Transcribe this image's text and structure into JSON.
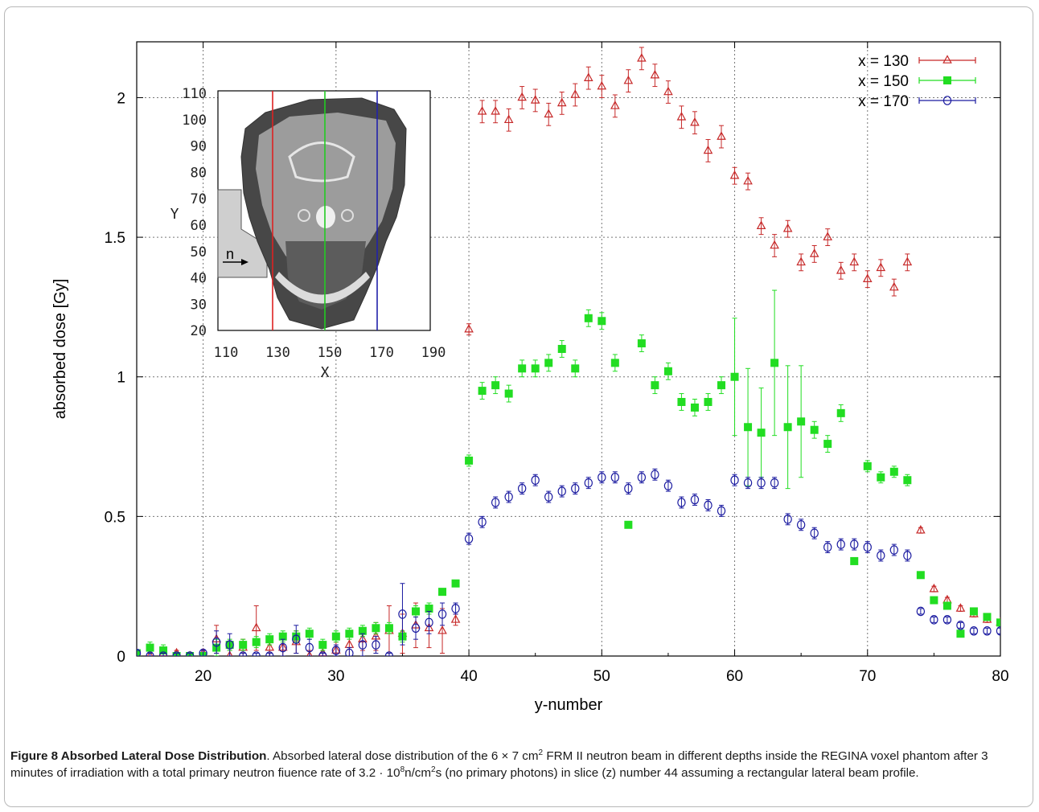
{
  "chart_data": {
    "type": "scatter",
    "xlabel": "y-number",
    "ylabel": "absorbed dose [Gy]",
    "xlim": [
      15,
      80
    ],
    "ylim": [
      0,
      2.2
    ],
    "xticks": [
      20,
      30,
      40,
      50,
      60,
      70,
      80
    ],
    "yticks": [
      0,
      0.5,
      1,
      1.5,
      2
    ],
    "grid": true,
    "legend_position": "top-right",
    "series": [
      {
        "name": "x = 130",
        "color": "#c62828",
        "marker": "triangle-open",
        "x": [
          15,
          16,
          17,
          18,
          19,
          20,
          21,
          22,
          23,
          24,
          25,
          26,
          27,
          28,
          29,
          30,
          31,
          32,
          33,
          34,
          35,
          36,
          37,
          38,
          39,
          40,
          41,
          42,
          43,
          44,
          45,
          46,
          47,
          48,
          49,
          50,
          51,
          52,
          53,
          54,
          55,
          56,
          57,
          58,
          59,
          60,
          61,
          62,
          63,
          64,
          65,
          66,
          67,
          68,
          69,
          70,
          71,
          72,
          73,
          74,
          75,
          76,
          77,
          78,
          79,
          80
        ],
        "y": [
          0.01,
          0.0,
          0.01,
          0.01,
          0.0,
          0.01,
          0.06,
          0.0,
          0.03,
          0.1,
          0.03,
          0.03,
          0.05,
          0.0,
          0.01,
          0.02,
          0.04,
          0.06,
          0.07,
          0.09,
          0.08,
          0.11,
          0.1,
          0.09,
          0.13,
          1.17,
          1.95,
          1.95,
          1.92,
          2.0,
          1.99,
          1.94,
          1.98,
          2.01,
          2.07,
          2.04,
          1.97,
          2.06,
          2.14,
          2.08,
          2.02,
          1.93,
          1.91,
          1.81,
          1.86,
          1.72,
          1.7,
          1.54,
          1.47,
          1.53,
          1.41,
          1.44,
          1.5,
          1.38,
          1.41,
          1.35,
          1.39,
          1.32,
          1.41,
          0.45,
          0.24,
          0.2,
          0.17,
          0.15,
          0.13,
          0.12
        ],
        "err": [
          0.01,
          0.01,
          0.01,
          0.01,
          0.01,
          0.01,
          0.05,
          0.02,
          0.03,
          0.08,
          0.03,
          0.03,
          0.04,
          0.02,
          0.02,
          0.03,
          0.04,
          0.04,
          0.05,
          0.09,
          0.07,
          0.08,
          0.07,
          0.08,
          0.02,
          0.02,
          0.04,
          0.04,
          0.04,
          0.04,
          0.04,
          0.04,
          0.04,
          0.04,
          0.04,
          0.04,
          0.04,
          0.04,
          0.04,
          0.04,
          0.04,
          0.04,
          0.04,
          0.04,
          0.04,
          0.03,
          0.03,
          0.03,
          0.04,
          0.03,
          0.03,
          0.03,
          0.03,
          0.03,
          0.03,
          0.03,
          0.03,
          0.03,
          0.03,
          0.01,
          0.01,
          0.01,
          0.01,
          0.01,
          0.01,
          0.01
        ]
      },
      {
        "name": "x = 150",
        "color": "#22dd22",
        "marker": "square-filled",
        "x": [
          15,
          16,
          17,
          18,
          19,
          20,
          21,
          22,
          23,
          24,
          25,
          26,
          27,
          28,
          29,
          30,
          31,
          32,
          33,
          34,
          35,
          36,
          37,
          38,
          39,
          40,
          41,
          42,
          43,
          44,
          45,
          46,
          47,
          48,
          49,
          50,
          51,
          52,
          53,
          54,
          55,
          56,
          57,
          58,
          59,
          60,
          61,
          62,
          63,
          64,
          65,
          66,
          67,
          68,
          69,
          70,
          71,
          72,
          73,
          74,
          75,
          76,
          77,
          78,
          79,
          80
        ],
        "y": [
          0.01,
          0.03,
          0.02,
          0.0,
          0.0,
          0.0,
          0.03,
          0.04,
          0.04,
          0.05,
          0.06,
          0.07,
          0.07,
          0.08,
          0.04,
          0.07,
          0.08,
          0.09,
          0.1,
          0.1,
          0.07,
          0.16,
          0.17,
          0.23,
          0.26,
          0.7,
          0.95,
          0.97,
          0.94,
          1.03,
          1.03,
          1.05,
          1.1,
          1.03,
          1.21,
          1.2,
          1.05,
          0.47,
          1.12,
          0.97,
          1.02,
          0.91,
          0.89,
          0.91,
          0.97,
          1.0,
          0.82,
          0.8,
          1.05,
          0.82,
          0.84,
          0.81,
          0.76,
          0.87,
          0.34,
          0.68,
          0.64,
          0.66,
          0.63,
          0.29,
          0.2,
          0.18,
          0.08,
          0.16,
          0.14,
          0.12
        ],
        "err": [
          0.01,
          0.02,
          0.02,
          0.01,
          0.01,
          0.01,
          0.03,
          0.02,
          0.02,
          0.02,
          0.02,
          0.02,
          0.02,
          0.02,
          0.02,
          0.02,
          0.02,
          0.02,
          0.02,
          0.02,
          0.02,
          0.02,
          0.02,
          0.01,
          0.01,
          0.02,
          0.03,
          0.03,
          0.03,
          0.03,
          0.03,
          0.03,
          0.03,
          0.03,
          0.03,
          0.03,
          0.03,
          0.01,
          0.03,
          0.03,
          0.03,
          0.03,
          0.03,
          0.03,
          0.03,
          0.21,
          0.21,
          0.16,
          0.26,
          0.22,
          0.2,
          0.03,
          0.03,
          0.03,
          0.01,
          0.02,
          0.02,
          0.02,
          0.02,
          0.01,
          0.01,
          0.01,
          0.01,
          0.01,
          0.01,
          0.01
        ]
      },
      {
        "name": "x = 170",
        "color": "#1a1aa0",
        "marker": "circle-open",
        "x": [
          15,
          16,
          17,
          18,
          19,
          20,
          21,
          22,
          23,
          24,
          25,
          26,
          27,
          28,
          29,
          30,
          31,
          32,
          33,
          34,
          35,
          36,
          37,
          38,
          39,
          40,
          41,
          42,
          43,
          44,
          45,
          46,
          47,
          48,
          49,
          50,
          51,
          52,
          53,
          54,
          55,
          56,
          57,
          58,
          59,
          60,
          61,
          62,
          63,
          64,
          65,
          66,
          67,
          68,
          69,
          70,
          71,
          72,
          73,
          74,
          75,
          76,
          77,
          78,
          79,
          80
        ],
        "y": [
          0.01,
          0.0,
          0.0,
          0.0,
          0.0,
          0.01,
          0.05,
          0.04,
          0.0,
          0.0,
          0.0,
          0.03,
          0.06,
          0.03,
          0.0,
          0.02,
          0.01,
          0.04,
          0.04,
          0.0,
          0.15,
          0.1,
          0.12,
          0.15,
          0.17,
          0.42,
          0.48,
          0.55,
          0.57,
          0.6,
          0.63,
          0.57,
          0.59,
          0.6,
          0.62,
          0.64,
          0.64,
          0.6,
          0.64,
          0.65,
          0.61,
          0.55,
          0.56,
          0.54,
          0.52,
          0.63,
          0.62,
          0.62,
          0.62,
          0.49,
          0.47,
          0.44,
          0.39,
          0.4,
          0.4,
          0.39,
          0.36,
          0.38,
          0.36,
          0.16,
          0.13,
          0.13,
          0.11,
          0.09,
          0.09,
          0.09
        ],
        "err": [
          0.01,
          0.01,
          0.01,
          0.01,
          0.01,
          0.01,
          0.04,
          0.04,
          0.01,
          0.01,
          0.01,
          0.03,
          0.05,
          0.03,
          0.01,
          0.02,
          0.02,
          0.04,
          0.03,
          0.01,
          0.11,
          0.04,
          0.04,
          0.04,
          0.02,
          0.02,
          0.02,
          0.02,
          0.02,
          0.02,
          0.02,
          0.02,
          0.02,
          0.02,
          0.02,
          0.02,
          0.02,
          0.02,
          0.02,
          0.02,
          0.02,
          0.02,
          0.02,
          0.02,
          0.02,
          0.02,
          0.02,
          0.02,
          0.02,
          0.02,
          0.02,
          0.02,
          0.02,
          0.02,
          0.02,
          0.02,
          0.02,
          0.02,
          0.02,
          0.01,
          0.01,
          0.01,
          0.01,
          0.01,
          0.01,
          0.01
        ]
      }
    ],
    "inset": {
      "xlabel": "X",
      "ylabel": "Y",
      "xticks": [
        "110",
        "130",
        "150",
        "170",
        "190"
      ],
      "yticks": [
        "110",
        "100",
        "90",
        "80",
        "70",
        "60",
        "50",
        "40",
        "30",
        "20"
      ],
      "beam_label": "n"
    }
  },
  "caption": {
    "label": "Figure 8 Absorbed Lateral Dose Distribution",
    "text_1": ". Absorbed lateral dose distribution of the 6 × 7 cm",
    "sup_1": "2",
    "text_2": " FRM II neutron beam in different depths inside the REGINA voxel phantom after 3 minutes of irradiation with a total primary neutron fiuence rate of 3.2 · 10",
    "sup_2": "8",
    "text_3": "n/cm",
    "sup_3": "2",
    "text_4": "s (no primary photons) in slice (z) number 44 assuming a rectangular lateral beam profile."
  }
}
